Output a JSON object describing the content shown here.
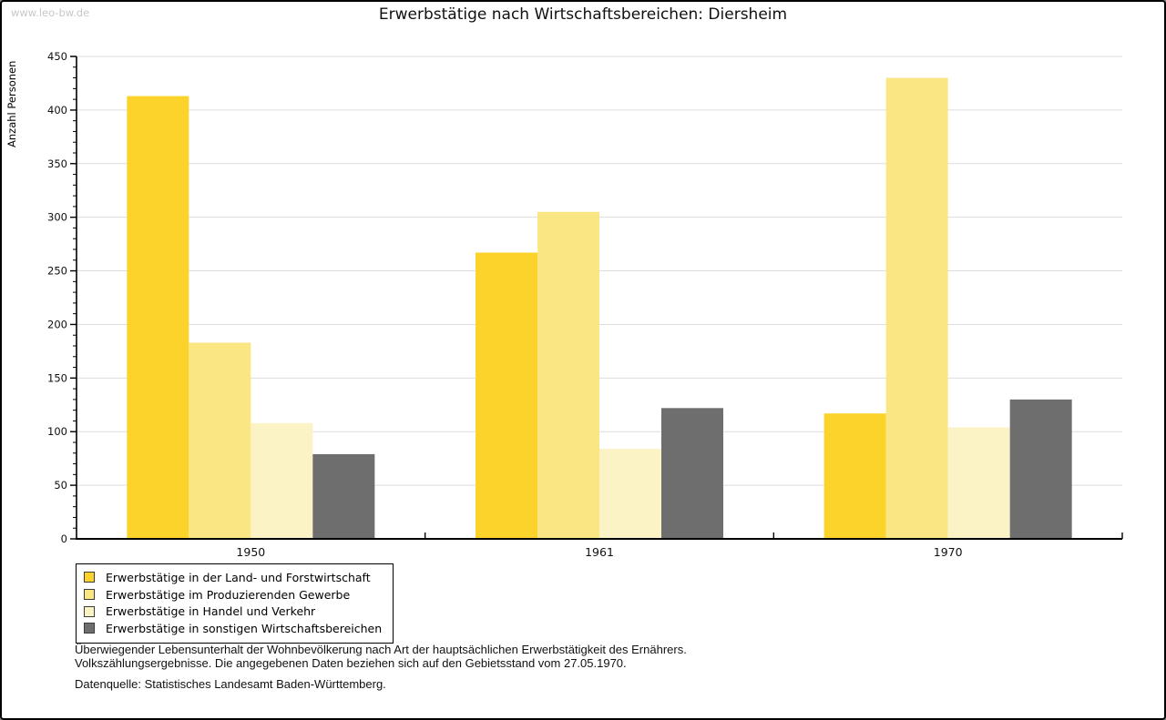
{
  "page": {
    "watermark": "www.leo-bw.de",
    "title": "Erwerbstätige nach Wirtschaftsbereichen: Diersheim",
    "footer": {
      "line1": "Überwiegender Lebensunterhalt der Wohnbevölkerung nach Art der hauptsächlichen Erwerbstätigkeit des Ernährers.",
      "line2": "Volkszählungsergebnisse. Die angegebenen Daten beziehen sich auf den Gebietsstand vom 27.05.1970.",
      "source": "Datenquelle: Statistisches Landesamt Baden-Württemberg."
    }
  },
  "chart_data": {
    "type": "bar",
    "title": "Erwerbstätige nach Wirtschaftsbereichen: Diersheim",
    "xlabel": "",
    "ylabel": "Anzahl Personen",
    "categories": [
      "1950",
      "1961",
      "1970"
    ],
    "series": [
      {
        "name": "Erwerbstätige in der Land- und Forstwirtschaft",
        "key": "land-und-forstwirtschaft",
        "color": "#FBD32B",
        "values": [
          413,
          267,
          117
        ]
      },
      {
        "name": "Erwerbstätige im Produzierenden Gewerbe",
        "key": "produzierendes-gewerbe",
        "color": "#FAE784",
        "values": [
          183,
          305,
          430
        ]
      },
      {
        "name": "Erwerbstätige in Handel und Verkehr",
        "key": "handel-und-verkehr",
        "color": "#FBF3C5",
        "values": [
          108,
          84,
          104
        ]
      },
      {
        "name": "Erwerbstätige in sonstigen Wirtschaftsbereichen",
        "key": "sonstige-wirtschaftsbereiche",
        "color": "#6E6E6E",
        "values": [
          79,
          122,
          130
        ]
      }
    ],
    "ylim": [
      0,
      450
    ],
    "ytick_step": 50,
    "yminor_step": 10,
    "grid": true,
    "gridline_color": "#DDDDDD",
    "axis_color": "#000000",
    "legend_position": "bottom-left"
  }
}
